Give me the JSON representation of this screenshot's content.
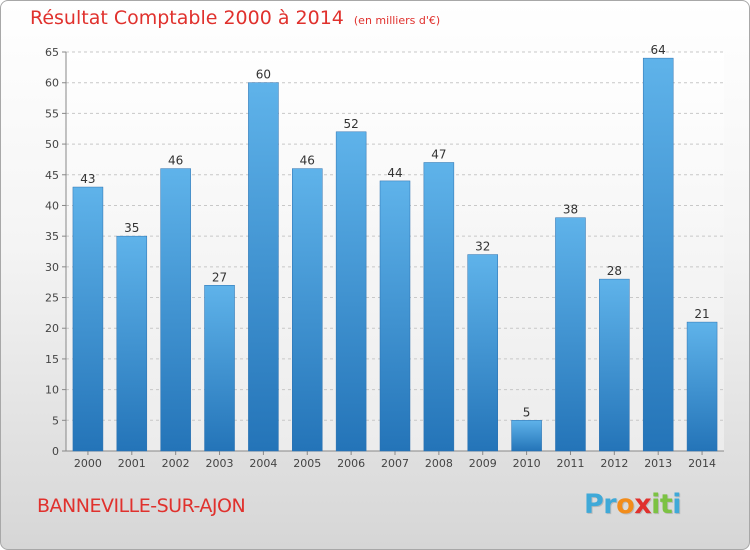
{
  "chart_data": {
    "type": "bar",
    "title": "Résultat Comptable 2000 à 2014",
    "subtitle": "(en milliers d'€)",
    "categories": [
      "2000",
      "2001",
      "2002",
      "2003",
      "2004",
      "2005",
      "2006",
      "2007",
      "2008",
      "2009",
      "2010",
      "2011",
      "2012",
      "2013",
      "2014"
    ],
    "values": [
      43,
      35,
      46,
      27,
      60,
      46,
      52,
      44,
      47,
      32,
      5,
      38,
      28,
      64,
      21
    ],
    "ylim": [
      0,
      65
    ],
    "yticks": [
      0,
      5,
      10,
      15,
      20,
      25,
      30,
      35,
      40,
      45,
      50,
      55,
      60,
      65
    ],
    "grid": true,
    "bar_color": "#3a8fd6"
  },
  "footer": {
    "place": "BANNEVILLE-SUR-AJON",
    "logo": "Proxiti"
  },
  "colors": {
    "accent": "#e0312d",
    "logo_letters": [
      "#3fa9d8",
      "#3fa9d8",
      "#f28c1a",
      "#e0312d",
      "#7cc243",
      "#7cc243",
      "#3fa9d8"
    ]
  }
}
